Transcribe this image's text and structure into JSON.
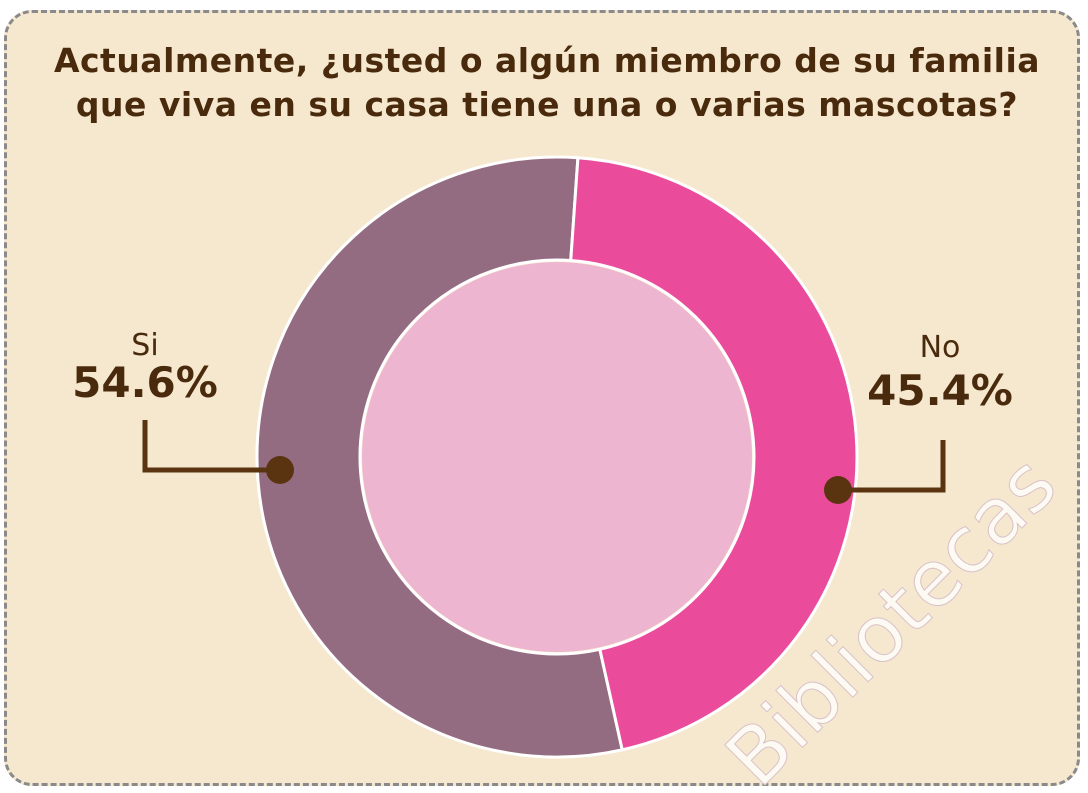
{
  "chart_data": {
    "type": "pie",
    "title": "Actualmente, ¿usted o algún miembro de su familia que viva en su casa tiene una o varias mascotas?",
    "categories": [
      "Si",
      "No"
    ],
    "values": [
      54.6,
      45.4
    ],
    "value_labels": [
      "54.6%",
      "45.4%"
    ],
    "colors": [
      "#946c82",
      "#ea4c9b"
    ],
    "watermark": "Bibliotecas"
  }
}
